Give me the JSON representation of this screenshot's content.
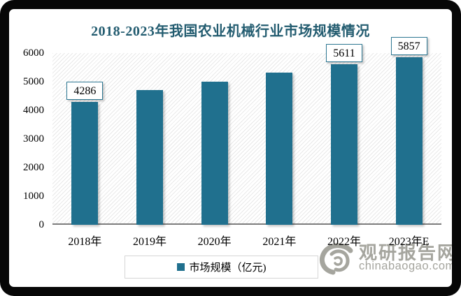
{
  "chart_data": {
    "type": "bar",
    "title": "2018-2023年我国农业机械行业市场规模情况",
    "categories": [
      "2018年",
      "2019年",
      "2020年",
      "2021年",
      "2022年",
      "2023年E"
    ],
    "series": [
      {
        "name": "市场规模（亿元)",
        "values": [
          4286,
          4700,
          5000,
          5310,
          5611,
          5857
        ]
      }
    ],
    "shown_data_labels": {
      "2018年": "4286",
      "2022年": "5611",
      "2023年E": "5857"
    },
    "ylim": [
      0,
      6000
    ],
    "yticks": [
      0,
      1000,
      2000,
      3000,
      4000,
      5000,
      6000
    ],
    "grid": false,
    "plot_background": "diagonal-hatch",
    "legend": {
      "label": "市场规模（亿元)",
      "position": "bottom"
    },
    "colors": {
      "bar": "#20708e",
      "title": "#235c70",
      "axis_line": "#7d7d7d",
      "label_box_border": "#2e7893"
    }
  },
  "watermark": {
    "brand": "观研报告网",
    "domain": "chinabaogao.com",
    "color": "#a5a59e"
  }
}
